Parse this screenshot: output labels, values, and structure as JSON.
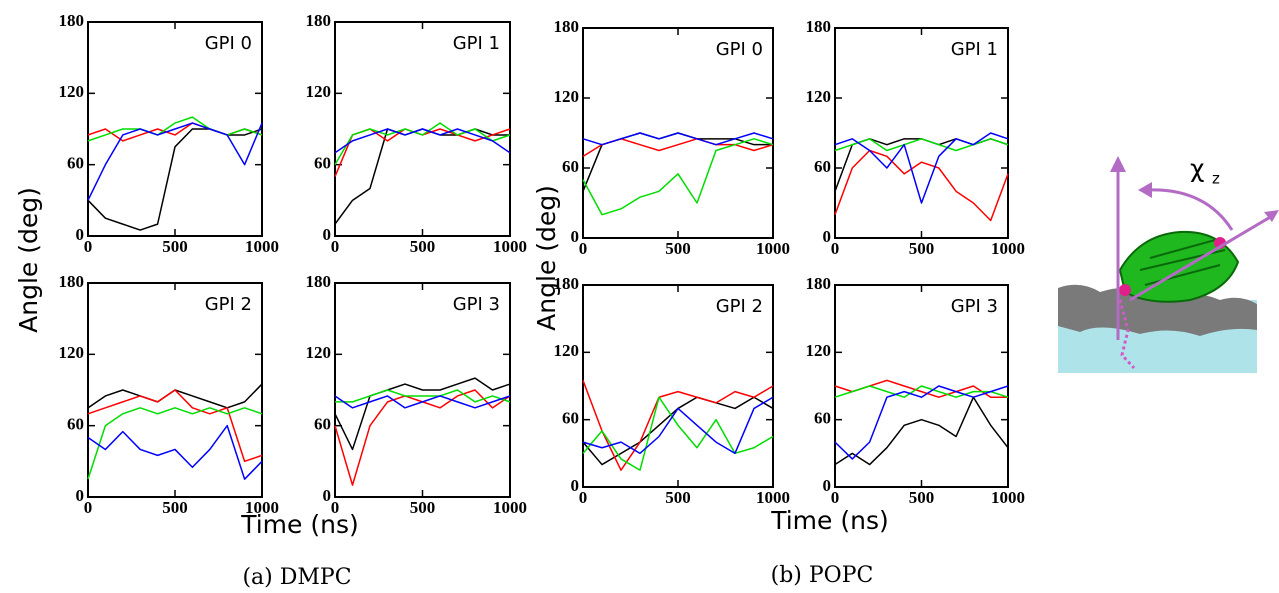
{
  "figure": {
    "groups": [
      {
        "ylabel": "Angle (deg)",
        "xlabel": "Time (ns)",
        "caption": "(a) DMPC"
      },
      {
        "ylabel": "Angle (deg)",
        "xlabel": "Time (ns)",
        "caption": "(b) POPC"
      }
    ],
    "diagram": {
      "symbol": "χ",
      "subscript": "z"
    }
  },
  "chart_data": [
    {
      "type": "line",
      "title": "GPI 0",
      "x": [
        0,
        100,
        200,
        300,
        400,
        500,
        600,
        700,
        800,
        900,
        1000
      ],
      "xlim": [
        0,
        1000
      ],
      "xticks": [
        0,
        500,
        1000
      ],
      "ylim": [
        0,
        180
      ],
      "yticks": [
        0,
        60,
        120,
        180
      ],
      "series": [
        {
          "color": "#000000",
          "values": [
            30,
            15,
            10,
            5,
            10,
            75,
            90,
            90,
            85,
            85,
            90
          ]
        },
        {
          "color": "#ff0000",
          "values": [
            85,
            90,
            80,
            85,
            90,
            85,
            95,
            90,
            85,
            90,
            85
          ]
        },
        {
          "color": "#00dd00",
          "values": [
            80,
            85,
            90,
            90,
            85,
            95,
            100,
            90,
            85,
            90,
            85
          ]
        },
        {
          "color": "#0000ff",
          "values": [
            30,
            60,
            85,
            90,
            85,
            90,
            95,
            90,
            85,
            60,
            95
          ]
        }
      ]
    },
    {
      "type": "line",
      "title": "GPI 1",
      "x": [
        0,
        100,
        200,
        300,
        400,
        500,
        600,
        700,
        800,
        900,
        1000
      ],
      "xlim": [
        0,
        1000
      ],
      "xticks": [
        0,
        500,
        1000
      ],
      "ylim": [
        0,
        180
      ],
      "yticks": [
        0,
        60,
        120,
        180
      ],
      "series": [
        {
          "color": "#000000",
          "values": [
            10,
            30,
            40,
            90,
            85,
            90,
            85,
            85,
            90,
            85,
            85
          ]
        },
        {
          "color": "#ff0000",
          "values": [
            50,
            85,
            90,
            80,
            90,
            85,
            90,
            85,
            80,
            85,
            90
          ]
        },
        {
          "color": "#00dd00",
          "values": [
            60,
            85,
            90,
            85,
            90,
            85,
            95,
            85,
            90,
            80,
            85
          ]
        },
        {
          "color": "#0000ff",
          "values": [
            70,
            80,
            85,
            90,
            85,
            90,
            85,
            90,
            85,
            80,
            70
          ]
        }
      ]
    },
    {
      "type": "line",
      "title": "GPI 2",
      "x": [
        0,
        100,
        200,
        300,
        400,
        500,
        600,
        700,
        800,
        900,
        1000
      ],
      "xlim": [
        0,
        1000
      ],
      "xticks": [
        0,
        500,
        1000
      ],
      "ylim": [
        0,
        180
      ],
      "yticks": [
        0,
        60,
        120,
        180
      ],
      "series": [
        {
          "color": "#000000",
          "values": [
            75,
            85,
            90,
            85,
            80,
            90,
            85,
            80,
            75,
            80,
            95
          ]
        },
        {
          "color": "#ff0000",
          "values": [
            70,
            75,
            80,
            85,
            80,
            90,
            75,
            70,
            75,
            30,
            35
          ]
        },
        {
          "color": "#00dd00",
          "values": [
            15,
            60,
            70,
            75,
            70,
            75,
            70,
            75,
            70,
            75,
            70
          ]
        },
        {
          "color": "#0000ff",
          "values": [
            50,
            40,
            55,
            40,
            35,
            40,
            25,
            40,
            60,
            15,
            30
          ]
        }
      ]
    },
    {
      "type": "line",
      "title": "GPI 3",
      "x": [
        0,
        100,
        200,
        300,
        400,
        500,
        600,
        700,
        800,
        900,
        1000
      ],
      "xlim": [
        0,
        1000
      ],
      "xticks": [
        0,
        500,
        1000
      ],
      "ylim": [
        0,
        180
      ],
      "yticks": [
        0,
        60,
        120,
        180
      ],
      "series": [
        {
          "color": "#000000",
          "values": [
            70,
            40,
            85,
            90,
            95,
            90,
            90,
            95,
            100,
            90,
            95
          ]
        },
        {
          "color": "#ff0000",
          "values": [
            60,
            10,
            60,
            80,
            85,
            80,
            75,
            85,
            90,
            75,
            85
          ]
        },
        {
          "color": "#00dd00",
          "values": [
            80,
            80,
            85,
            90,
            85,
            85,
            85,
            90,
            80,
            85,
            80
          ]
        },
        {
          "color": "#0000ff",
          "values": [
            85,
            75,
            80,
            85,
            75,
            80,
            85,
            80,
            75,
            80,
            85
          ]
        }
      ]
    },
    {
      "type": "line",
      "title": "GPI 0",
      "x": [
        0,
        100,
        200,
        300,
        400,
        500,
        600,
        700,
        800,
        900,
        1000
      ],
      "xlim": [
        0,
        1000
      ],
      "xticks": [
        0,
        500,
        1000
      ],
      "ylim": [
        0,
        180
      ],
      "yticks": [
        0,
        60,
        120,
        180
      ],
      "series": [
        {
          "color": "#000000",
          "values": [
            40,
            80,
            85,
            90,
            85,
            90,
            85,
            85,
            85,
            80,
            80
          ]
        },
        {
          "color": "#ff0000",
          "values": [
            70,
            80,
            85,
            80,
            75,
            80,
            85,
            80,
            80,
            75,
            80
          ]
        },
        {
          "color": "#00dd00",
          "values": [
            50,
            20,
            25,
            35,
            40,
            55,
            30,
            75,
            80,
            85,
            80
          ]
        },
        {
          "color": "#0000ff",
          "values": [
            85,
            80,
            85,
            90,
            85,
            90,
            85,
            80,
            85,
            90,
            85
          ]
        }
      ]
    },
    {
      "type": "line",
      "title": "GPI 1",
      "x": [
        0,
        100,
        200,
        300,
        400,
        500,
        600,
        700,
        800,
        900,
        1000
      ],
      "xlim": [
        0,
        1000
      ],
      "xticks": [
        0,
        500,
        1000
      ],
      "ylim": [
        0,
        180
      ],
      "yticks": [
        0,
        60,
        120,
        180
      ],
      "series": [
        {
          "color": "#000000",
          "values": [
            40,
            80,
            85,
            80,
            85,
            85,
            80,
            85,
            80,
            85,
            80
          ]
        },
        {
          "color": "#ff0000",
          "values": [
            20,
            60,
            75,
            70,
            55,
            65,
            60,
            40,
            30,
            15,
            55
          ]
        },
        {
          "color": "#00dd00",
          "values": [
            75,
            80,
            85,
            75,
            80,
            85,
            80,
            75,
            80,
            85,
            80
          ]
        },
        {
          "color": "#0000ff",
          "values": [
            80,
            85,
            75,
            60,
            80,
            30,
            70,
            85,
            80,
            90,
            85
          ]
        }
      ]
    },
    {
      "type": "line",
      "title": "GPI 2",
      "x": [
        0,
        100,
        200,
        300,
        400,
        500,
        600,
        700,
        800,
        900,
        1000
      ],
      "xlim": [
        0,
        1000
      ],
      "xticks": [
        0,
        500,
        1000
      ],
      "ylim": [
        0,
        180
      ],
      "yticks": [
        0,
        60,
        120,
        180
      ],
      "series": [
        {
          "color": "#000000",
          "values": [
            40,
            20,
            30,
            40,
            55,
            70,
            80,
            75,
            70,
            80,
            70
          ]
        },
        {
          "color": "#ff0000",
          "values": [
            95,
            50,
            15,
            40,
            80,
            85,
            80,
            75,
            85,
            80,
            90
          ]
        },
        {
          "color": "#00dd00",
          "values": [
            30,
            50,
            25,
            15,
            80,
            55,
            35,
            60,
            30,
            35,
            45
          ]
        },
        {
          "color": "#0000ff",
          "values": [
            40,
            35,
            40,
            30,
            45,
            70,
            55,
            40,
            30,
            70,
            80
          ]
        }
      ]
    },
    {
      "type": "line",
      "title": "GPI 3",
      "x": [
        0,
        100,
        200,
        300,
        400,
        500,
        600,
        700,
        800,
        900,
        1000
      ],
      "xlim": [
        0,
        1000
      ],
      "xticks": [
        0,
        500,
        1000
      ],
      "ylim": [
        0,
        180
      ],
      "yticks": [
        0,
        60,
        120,
        180
      ],
      "series": [
        {
          "color": "#000000",
          "values": [
            20,
            30,
            20,
            35,
            55,
            60,
            55,
            45,
            80,
            55,
            35
          ]
        },
        {
          "color": "#ff0000",
          "values": [
            90,
            85,
            90,
            95,
            90,
            85,
            80,
            85,
            90,
            80,
            80
          ]
        },
        {
          "color": "#00dd00",
          "values": [
            80,
            85,
            90,
            85,
            80,
            90,
            85,
            80,
            85,
            85,
            80
          ]
        },
        {
          "color": "#0000ff",
          "values": [
            40,
            25,
            40,
            80,
            85,
            80,
            90,
            85,
            80,
            85,
            90
          ]
        }
      ]
    }
  ]
}
